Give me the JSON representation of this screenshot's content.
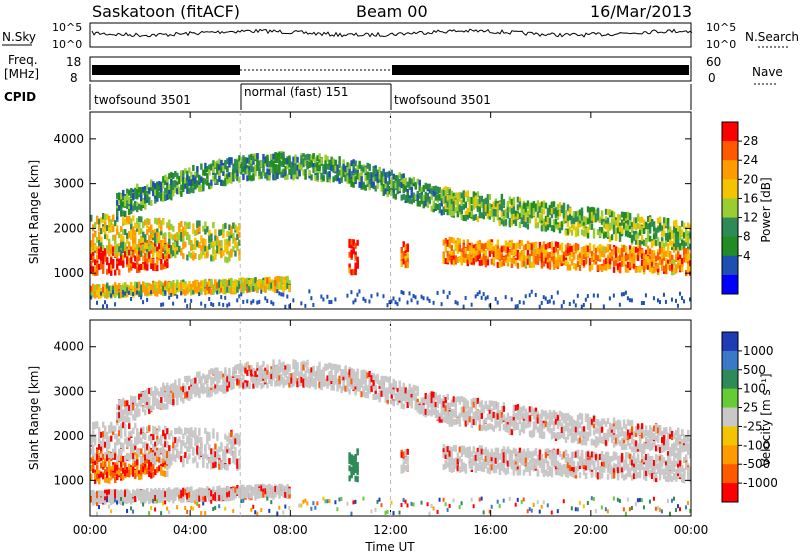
{
  "header": {
    "station": "Saskatoon (fitACF)",
    "beam": "Beam 00",
    "date": "16/Mar/2013"
  },
  "strips": {
    "nsky_label": "N.Sky",
    "nsky_ticks": [
      "10^5",
      "10^0"
    ],
    "nsearch_label": "N.Search",
    "nsearch_ticks": [
      "10^5",
      "10^0"
    ],
    "freq_label_1": "Freq.",
    "freq_label_2": "[MHz]",
    "freq_ticks": [
      "18",
      "8"
    ],
    "nave_label": "Nave",
    "nave_ticks": [
      "60",
      "0"
    ],
    "cpid_label": "CPID",
    "cpid_segments": [
      {
        "label": "twofsound 3501",
        "start_hour": 0,
        "end_hour": 6
      },
      {
        "label": "normal (fast) 151",
        "start_hour": 6,
        "end_hour": 12
      },
      {
        "label": "twofsound 3501",
        "start_hour": 12,
        "end_hour": 24
      }
    ]
  },
  "chart_data": [
    {
      "type": "heatmap",
      "title": "",
      "xlabel": "Time UT",
      "ylabel": "Slant Range [km]",
      "xlim": [
        0,
        24
      ],
      "ylim": [
        200,
        4600
      ],
      "x_tick_labels": [
        "00:00",
        "04:00",
        "08:00",
        "12:00",
        "16:00",
        "20:00",
        "00:00"
      ],
      "x_ticks_hours": [
        0,
        4,
        8,
        12,
        16,
        20,
        24
      ],
      "y_ticks": [
        1000,
        2000,
        3000,
        4000
      ],
      "y_tick_labels": [
        "1000",
        "2000",
        "3000",
        "4000"
      ],
      "colorbar": {
        "label": "Power [dB]",
        "ticks": [
          "28",
          "24",
          "20",
          "16",
          "12",
          "8",
          "4"
        ],
        "colors": [
          "#ff0000",
          "#ff5a00",
          "#ff9a00",
          "#f5c400",
          "#9acd32",
          "#2e8b57",
          "#228b22",
          "#1e50b4",
          "#0000ff"
        ]
      },
      "features": [
        {
          "name": "near-range band",
          "start_hour": 0,
          "end_hour": 3,
          "range_km": [
            900,
            1500
          ],
          "level": "high"
        },
        {
          "name": "evening band",
          "start_hour": 14,
          "end_hour": 24,
          "range_km": [
            1100,
            2200
          ],
          "level": "medium-high"
        },
        {
          "name": "far-range arc",
          "start_hour": 4,
          "end_hour": 14,
          "range_km": [
            2600,
            3500
          ],
          "level": "low"
        }
      ]
    },
    {
      "type": "heatmap",
      "title": "",
      "xlabel": "Time UT",
      "ylabel": "Slant Range [km]",
      "xlim": [
        0,
        24
      ],
      "ylim": [
        200,
        4600
      ],
      "x_tick_labels": [
        "00:00",
        "04:00",
        "08:00",
        "12:00",
        "16:00",
        "20:00",
        "00:00"
      ],
      "x_ticks_hours": [
        0,
        4,
        8,
        12,
        16,
        20,
        24
      ],
      "y_ticks": [
        1000,
        2000,
        3000,
        4000
      ],
      "y_tick_labels": [
        "1000",
        "2000",
        "3000",
        "4000"
      ],
      "colorbar": {
        "label": "Velocity [m s⁻¹]",
        "ticks": [
          "1000",
          "500",
          "100",
          "25",
          "-25",
          "-100",
          "-500",
          "-1000"
        ],
        "colors": [
          "#1e3cb4",
          "#3c78c8",
          "#2e8b57",
          "#66cc33",
          "#c8c8c8",
          "#f5c400",
          "#ff9a00",
          "#ff5a00",
          "#ff0000"
        ]
      }
    }
  ]
}
